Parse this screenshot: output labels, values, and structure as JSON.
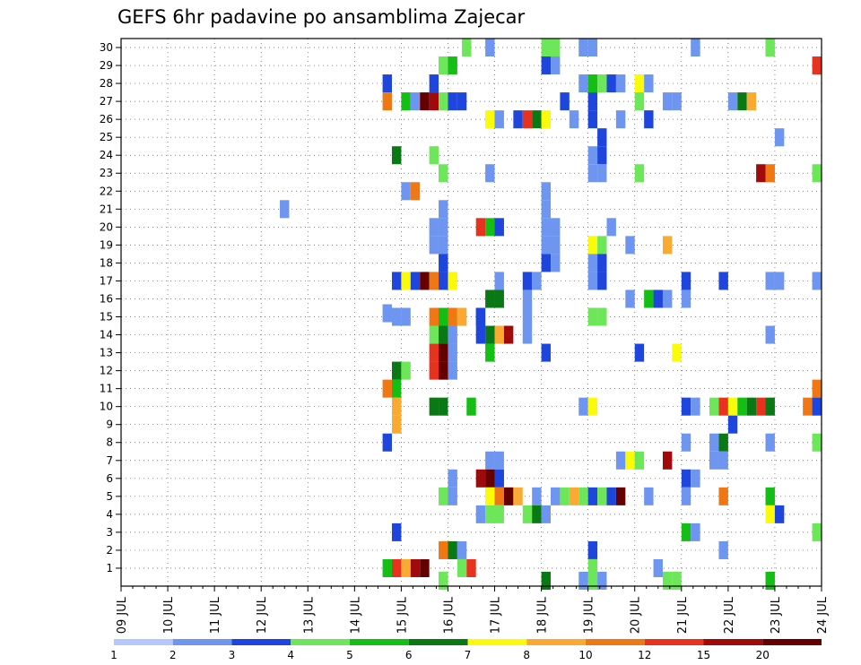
{
  "chart_data": {
    "type": "heatmap",
    "title": "GEFS 6hr padavine po ansamblima Zajecar",
    "xlabel": "",
    "ylabel": "",
    "x_ticks": [
      "09 JUL",
      "10 JUL",
      "11 JUL",
      "12 JUL",
      "13 JUL",
      "14 JUL",
      "15 JUL",
      "16 JUL",
      "17 JUL",
      "18 JUL",
      "19 JUL",
      "20 JUL",
      "21 JUL",
      "22 JUL",
      "23 JUL",
      "24 JUL"
    ],
    "y_ticks": [
      "1",
      "2",
      "3",
      "4",
      "5",
      "6",
      "7",
      "8",
      "9",
      "10",
      "11",
      "12",
      "13",
      "14",
      "15",
      "16",
      "17",
      "18",
      "19",
      "20",
      "21",
      "22",
      "23",
      "24",
      "25",
      "26",
      "27",
      "28",
      "29",
      "30"
    ],
    "xlim": [
      "09 JUL",
      "24 JUL"
    ],
    "ylim": [
      0,
      30
    ],
    "grid": true,
    "time_step_hours": 6,
    "legend": {
      "placement": "bottom",
      "colors": [
        "#b4c8fa",
        "#6e96f0",
        "#1e46dc",
        "#6ee65a",
        "#14be14",
        "#0a7814",
        "#fafa0a",
        "#faaa32",
        "#f07814",
        "#e6321e",
        "#a00a0a",
        "#640000"
      ],
      "labels": [
        "1",
        "2",
        "3",
        "4",
        "5",
        "6",
        "7",
        "8",
        "10",
        "12",
        "15",
        "20"
      ]
    },
    "cells": [
      [
        16.3,
        30,
        3
      ],
      [
        16.8,
        30,
        1
      ],
      [
        18,
        30,
        3
      ],
      [
        18.2,
        30,
        3
      ],
      [
        18.8,
        30,
        1
      ],
      [
        19,
        30,
        1
      ],
      [
        21.2,
        30,
        1
      ],
      [
        22.8,
        30,
        3
      ],
      [
        15.8,
        29,
        3
      ],
      [
        16,
        29,
        4
      ],
      [
        18,
        29,
        2
      ],
      [
        18.2,
        29,
        1
      ],
      [
        23.8,
        29,
        9
      ],
      [
        14.6,
        28,
        2
      ],
      [
        15.6,
        28,
        2
      ],
      [
        18.8,
        28,
        1
      ],
      [
        19,
        28,
        4
      ],
      [
        19.2,
        28,
        3
      ],
      [
        19.4,
        28,
        2
      ],
      [
        19.6,
        28,
        1
      ],
      [
        20,
        28,
        6
      ],
      [
        20.2,
        28,
        1
      ],
      [
        14.6,
        27,
        8
      ],
      [
        15,
        27,
        4
      ],
      [
        15.2,
        27,
        1
      ],
      [
        15.4,
        27,
        11
      ],
      [
        15.6,
        27,
        10
      ],
      [
        15.8,
        27,
        3
      ],
      [
        16,
        27,
        2
      ],
      [
        16.2,
        27,
        2
      ],
      [
        18.4,
        27,
        2
      ],
      [
        19,
        27,
        2
      ],
      [
        20,
        27,
        3
      ],
      [
        20.6,
        27,
        1
      ],
      [
        20.8,
        27,
        1
      ],
      [
        22,
        27,
        1
      ],
      [
        22.2,
        27,
        5
      ],
      [
        22.4,
        27,
        7
      ],
      [
        16.8,
        26,
        6
      ],
      [
        17,
        26,
        1
      ],
      [
        17.4,
        26,
        2
      ],
      [
        17.6,
        26,
        9
      ],
      [
        17.8,
        26,
        5
      ],
      [
        18,
        26,
        6
      ],
      [
        18.6,
        26,
        1
      ],
      [
        19,
        26,
        2
      ],
      [
        19.6,
        26,
        1
      ],
      [
        20.2,
        26,
        2
      ],
      [
        19.2,
        25,
        2
      ],
      [
        23,
        25,
        1
      ],
      [
        14.8,
        24,
        5
      ],
      [
        15.6,
        24,
        3
      ],
      [
        19,
        24,
        1
      ],
      [
        19.2,
        24,
        2
      ],
      [
        15.8,
        23,
        3
      ],
      [
        16.8,
        23,
        1
      ],
      [
        19,
        23,
        1
      ],
      [
        19.2,
        23,
        1
      ],
      [
        20,
        23,
        3
      ],
      [
        22.6,
        23,
        10
      ],
      [
        22.8,
        23,
        8
      ],
      [
        23.8,
        23,
        3
      ],
      [
        15,
        22,
        1
      ],
      [
        15.2,
        22,
        8
      ],
      [
        18,
        22,
        1
      ],
      [
        12.4,
        21,
        1
      ],
      [
        15.8,
        21,
        1
      ],
      [
        18,
        21,
        1
      ],
      [
        15.6,
        20,
        1
      ],
      [
        15.8,
        20,
        1
      ],
      [
        16.6,
        20,
        9
      ],
      [
        16.8,
        20,
        4
      ],
      [
        17,
        20,
        2
      ],
      [
        18,
        20,
        1
      ],
      [
        18.2,
        20,
        1
      ],
      [
        19.4,
        20,
        1
      ],
      [
        15.6,
        19,
        1
      ],
      [
        15.8,
        19,
        1
      ],
      [
        18,
        19,
        1
      ],
      [
        18.2,
        19,
        1
      ],
      [
        19,
        19,
        6
      ],
      [
        19.2,
        19,
        3
      ],
      [
        19.8,
        19,
        1
      ],
      [
        20.6,
        19,
        7
      ],
      [
        15.8,
        18,
        2
      ],
      [
        18,
        18,
        2
      ],
      [
        18.2,
        18,
        1
      ],
      [
        19,
        18,
        1
      ],
      [
        19.2,
        18,
        2
      ],
      [
        14.8,
        17,
        2
      ],
      [
        15,
        17,
        6
      ],
      [
        15.2,
        17,
        2
      ],
      [
        15.4,
        17,
        11
      ],
      [
        15.6,
        17,
        8
      ],
      [
        15.8,
        17,
        2
      ],
      [
        16,
        17,
        6
      ],
      [
        17,
        17,
        1
      ],
      [
        17.6,
        17,
        2
      ],
      [
        17.8,
        17,
        1
      ],
      [
        19,
        17,
        1
      ],
      [
        19.2,
        17,
        2
      ],
      [
        21,
        17,
        2
      ],
      [
        21.8,
        17,
        2
      ],
      [
        22.8,
        17,
        1
      ],
      [
        23,
        17,
        1
      ],
      [
        23.8,
        17,
        1
      ],
      [
        16.8,
        16,
        5
      ],
      [
        17,
        16,
        5
      ],
      [
        17.6,
        16,
        1
      ],
      [
        19.8,
        16,
        1
      ],
      [
        20.2,
        16,
        4
      ],
      [
        20.4,
        16,
        2
      ],
      [
        20.6,
        16,
        1
      ],
      [
        21,
        16,
        1
      ],
      [
        15.6,
        15,
        8
      ],
      [
        15.8,
        15,
        4
      ],
      [
        16,
        15,
        8
      ],
      [
        16.2,
        15,
        7
      ],
      [
        16.6,
        15,
        2
      ],
      [
        17.6,
        15,
        1
      ],
      [
        19,
        15,
        3
      ],
      [
        19.2,
        15,
        3
      ],
      [
        14.6,
        15.2,
        1
      ],
      [
        14.8,
        15,
        1
      ],
      [
        15,
        15,
        1
      ],
      [
        15.8,
        15,
        4
      ],
      [
        16.6,
        15,
        2
      ],
      [
        15.6,
        14,
        3
      ],
      [
        15.8,
        14,
        5
      ],
      [
        16,
        14,
        1
      ],
      [
        16.6,
        14,
        2
      ],
      [
        16.8,
        14,
        5
      ],
      [
        17,
        14,
        7
      ],
      [
        17.2,
        14,
        10
      ],
      [
        17.6,
        14,
        1
      ],
      [
        22.8,
        14,
        1
      ],
      [
        15.6,
        13,
        9
      ],
      [
        15.8,
        13,
        11
      ],
      [
        16,
        13,
        1
      ],
      [
        16.8,
        13,
        4
      ],
      [
        18,
        13,
        2
      ],
      [
        20,
        13,
        2
      ],
      [
        20.8,
        13,
        6
      ],
      [
        14.8,
        12,
        5
      ],
      [
        15,
        12,
        3
      ],
      [
        15.6,
        12,
        9
      ],
      [
        15.8,
        12,
        11
      ],
      [
        16,
        12,
        1
      ],
      [
        14.6,
        11,
        8
      ],
      [
        14.8,
        11,
        4
      ],
      [
        23.8,
        11,
        8
      ],
      [
        14.8,
        10,
        7
      ],
      [
        15.6,
        10,
        5
      ],
      [
        15.8,
        10,
        5
      ],
      [
        16.4,
        10,
        4
      ],
      [
        18.8,
        10,
        1
      ],
      [
        19,
        10,
        6
      ],
      [
        21,
        10,
        2
      ],
      [
        21.2,
        10,
        1
      ],
      [
        21.6,
        10,
        3
      ],
      [
        21.8,
        10,
        9
      ],
      [
        22,
        10,
        6
      ],
      [
        22.2,
        10,
        4
      ],
      [
        22.4,
        10,
        5
      ],
      [
        22.6,
        10,
        9
      ],
      [
        22.8,
        10,
        5
      ],
      [
        23.6,
        10,
        8
      ],
      [
        23.8,
        10,
        2
      ],
      [
        14.8,
        9,
        7
      ],
      [
        22,
        9,
        2
      ],
      [
        14.6,
        8,
        2
      ],
      [
        21,
        8,
        1
      ],
      [
        21.6,
        8,
        1
      ],
      [
        21.8,
        8,
        5
      ],
      [
        22.8,
        8,
        1
      ],
      [
        23.8,
        8,
        3
      ],
      [
        16.8,
        7,
        1
      ],
      [
        17,
        7,
        1
      ],
      [
        19.6,
        7,
        1
      ],
      [
        19.8,
        7,
        6
      ],
      [
        20,
        7,
        3
      ],
      [
        20.6,
        7,
        10
      ],
      [
        21.6,
        7,
        1
      ],
      [
        21.8,
        7,
        1
      ],
      [
        16,
        6,
        1
      ],
      [
        16.6,
        6,
        10
      ],
      [
        16.8,
        6,
        11
      ],
      [
        17,
        6,
        2
      ],
      [
        21,
        6,
        2
      ],
      [
        21.2,
        6,
        1
      ],
      [
        15.8,
        5,
        3
      ],
      [
        16,
        5,
        1
      ],
      [
        16.8,
        5,
        6
      ],
      [
        17,
        5,
        8
      ],
      [
        17.2,
        5,
        11
      ],
      [
        17.4,
        5,
        7
      ],
      [
        17.8,
        5,
        1
      ],
      [
        18.2,
        5,
        1
      ],
      [
        18.4,
        5,
        3
      ],
      [
        18.6,
        5,
        7
      ],
      [
        18.8,
        5,
        3
      ],
      [
        19,
        5,
        2
      ],
      [
        19.2,
        5,
        3
      ],
      [
        19.4,
        5,
        2
      ],
      [
        19.6,
        5,
        11
      ],
      [
        20.2,
        5,
        1
      ],
      [
        21,
        5,
        1
      ],
      [
        21.8,
        5,
        8
      ],
      [
        22.8,
        5,
        4
      ],
      [
        16.6,
        4,
        1
      ],
      [
        16.8,
        4,
        3
      ],
      [
        17,
        4,
        3
      ],
      [
        17.6,
        4,
        3
      ],
      [
        17.8,
        4,
        5
      ],
      [
        18,
        4,
        1
      ],
      [
        22.8,
        4,
        6
      ],
      [
        23,
        4,
        2
      ],
      [
        14.8,
        3,
        2
      ],
      [
        21,
        3,
        4
      ],
      [
        21.2,
        3,
        1
      ],
      [
        23.8,
        3,
        3
      ],
      [
        15.8,
        2,
        8
      ],
      [
        16,
        2,
        5
      ],
      [
        16.2,
        2,
        1
      ],
      [
        19,
        2,
        2
      ],
      [
        21.8,
        2,
        1
      ],
      [
        14.6,
        1,
        4
      ],
      [
        14.8,
        1,
        9
      ],
      [
        15,
        1,
        7
      ],
      [
        15.2,
        1,
        10
      ],
      [
        15.4,
        1,
        11
      ],
      [
        16.2,
        1,
        3
      ],
      [
        16.4,
        1,
        9
      ],
      [
        19,
        1,
        3
      ],
      [
        20.4,
        1,
        1
      ],
      [
        19,
        0.3,
        3
      ],
      [
        15.8,
        0.3,
        3
      ],
      [
        18,
        0.3,
        5
      ],
      [
        18.8,
        0.3,
        1
      ],
      [
        19.2,
        0.3,
        1
      ],
      [
        20.6,
        0.3,
        3
      ],
      [
        20.8,
        0.3,
        3
      ],
      [
        22.8,
        0.3,
        4
      ]
    ]
  }
}
